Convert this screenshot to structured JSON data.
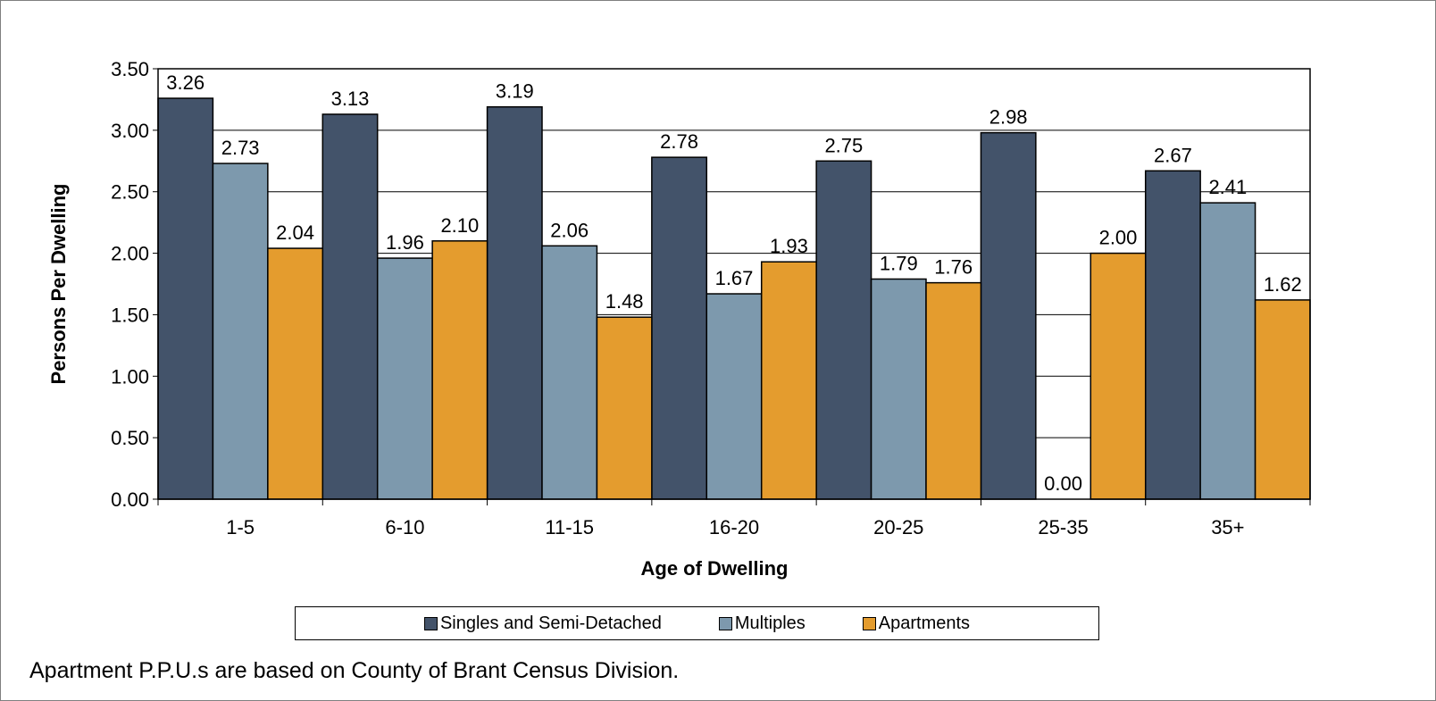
{
  "chart_data": {
    "type": "bar",
    "title": "",
    "xlabel": "Age of Dwelling",
    "ylabel": "Persons Per Dwelling",
    "categories": [
      "1-5",
      "6-10",
      "11-15",
      "16-20",
      "20-25",
      "25-35",
      "35+"
    ],
    "ylim": [
      0,
      3.5
    ],
    "yticks": [
      "0.00",
      "0.50",
      "1.00",
      "1.50",
      "2.00",
      "2.50",
      "3.00",
      "3.50"
    ],
    "grid": true,
    "legend_position": "bottom",
    "series": [
      {
        "name": "Singles and Semi-Detached",
        "color": "#43536a",
        "values": [
          3.26,
          3.13,
          3.19,
          2.78,
          2.75,
          2.98,
          2.67
        ],
        "labels": [
          "3.26",
          "3.13",
          "3.19",
          "2.78",
          "2.75",
          "2.98",
          "2.67"
        ]
      },
      {
        "name": "Multiples",
        "color": "#7d99ad",
        "values": [
          2.73,
          1.96,
          2.06,
          1.67,
          1.79,
          0.0,
          2.41
        ],
        "labels": [
          "2.73",
          "1.96",
          "2.06",
          "1.67",
          "1.79",
          "0.00",
          "2.41"
        ]
      },
      {
        "name": "Apartments",
        "color": "#e49c2e",
        "values": [
          2.04,
          2.1,
          1.48,
          1.93,
          1.76,
          2.0,
          1.62
        ],
        "labels": [
          "2.04",
          "2.10",
          "1.48",
          "1.93",
          "1.76",
          "2.00",
          "1.62"
        ]
      }
    ]
  },
  "note": "Apartment P.P.U.s are based on County of Brant Census Division."
}
